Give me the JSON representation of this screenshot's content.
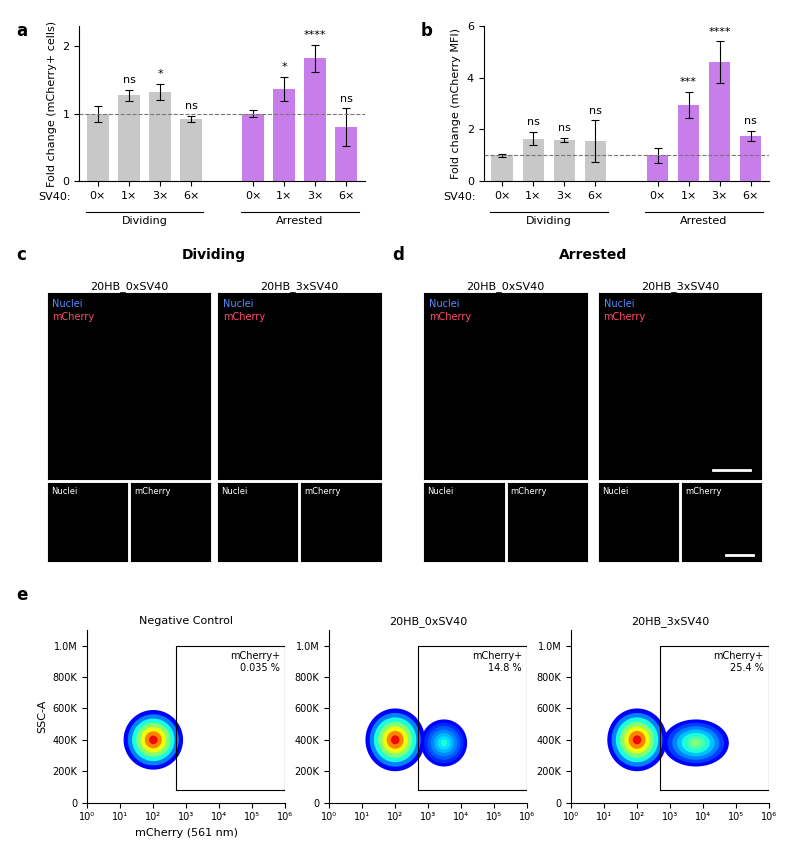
{
  "chart_data": [
    {
      "type": "bar",
      "panel_label": "a",
      "y_label": "Fold change (mCherry+ cells)",
      "x_row_label": "SV40:",
      "ylim": [
        0,
        2.3
      ],
      "yticks": [
        0,
        1,
        2
      ],
      "reference_line": 1,
      "groups": [
        {
          "name": "Dividing",
          "color": "#c8c8c8",
          "categories": [
            "0×",
            "1×",
            "3×",
            "6×"
          ],
          "values": [
            1.0,
            1.27,
            1.32,
            0.92
          ],
          "errors": [
            0.12,
            0.08,
            0.12,
            0.05
          ],
          "significance": [
            null,
            "ns",
            "*",
            "ns"
          ]
        },
        {
          "name": "Arrested",
          "color": "#c77dea",
          "categories": [
            "0×",
            "1×",
            "3×",
            "6×"
          ],
          "values": [
            1.0,
            1.37,
            1.82,
            0.8
          ],
          "errors": [
            0.05,
            0.18,
            0.2,
            0.28
          ],
          "significance": [
            null,
            "*",
            "****",
            "ns"
          ]
        }
      ]
    },
    {
      "type": "bar",
      "panel_label": "b",
      "y_label": "Fold change (mCherry MFI)",
      "x_row_label": "SV40:",
      "ylim": [
        0,
        6
      ],
      "yticks": [
        0,
        2,
        4,
        6
      ],
      "reference_line": 1,
      "groups": [
        {
          "name": "Dividing",
          "color": "#c8c8c8",
          "categories": [
            "0×",
            "1×",
            "3×",
            "6×"
          ],
          "values": [
            1.0,
            1.65,
            1.6,
            1.55
          ],
          "errors": [
            0.05,
            0.25,
            0.08,
            0.8
          ],
          "significance": [
            null,
            "ns",
            "ns",
            "ns"
          ]
        },
        {
          "name": "Arrested",
          "color": "#c77dea",
          "categories": [
            "0×",
            "1×",
            "3×",
            "6×"
          ],
          "values": [
            1.0,
            2.95,
            4.6,
            1.75
          ],
          "errors": [
            0.3,
            0.5,
            0.8,
            0.2
          ],
          "significance": [
            null,
            "***",
            "****",
            "ns"
          ]
        }
      ]
    },
    {
      "type": "density",
      "panel_label": "e",
      "title": "Negative Control",
      "x_label": "mCherry (561 nm)",
      "y_label": "SSC-A",
      "log": "x",
      "xlim": [
        1,
        1000000
      ],
      "ylim": [
        0,
        1100000
      ],
      "xticks": [
        {
          "value": 1,
          "label": "10⁰"
        },
        {
          "value": 10,
          "label": "10¹"
        },
        {
          "value": 100,
          "label": "10²"
        },
        {
          "value": 1000,
          "label": "10³"
        },
        {
          "value": 10000,
          "label": "10⁴"
        },
        {
          "value": 100000,
          "label": "10⁵"
        },
        {
          "value": 1000000,
          "label": "10⁶"
        }
      ],
      "yticks": [
        0,
        {
          "value": 200000,
          "label": "200K"
        },
        {
          "value": 400000,
          "label": "400K"
        },
        {
          "value": 600000,
          "label": "600K"
        },
        {
          "value": 800000,
          "label": "800K"
        },
        {
          "value": 1000000,
          "label": "1.0M"
        }
      ],
      "gate": {
        "label": "mCherry+",
        "value": 0.035,
        "value_label": "0.035 %",
        "x": [
          500,
          1000000
        ],
        "y": [
          80000,
          1000000
        ]
      },
      "populations": [
        {
          "x_center": 100,
          "y_center": 400000,
          "x_halfwidth_decades": 0.9,
          "y_halfheight": 190000,
          "relative_density": 1.0
        }
      ]
    },
    {
      "type": "density",
      "title": "20HB_0xSV40",
      "log": "x",
      "xlim": [
        1,
        1000000
      ],
      "ylim": [
        0,
        1100000
      ],
      "xticks": [
        {
          "value": 1,
          "label": "10⁰"
        },
        {
          "value": 10,
          "label": "10¹"
        },
        {
          "value": 100,
          "label": "10²"
        },
        {
          "value": 1000,
          "label": "10³"
        },
        {
          "value": 10000,
          "label": "10⁴"
        },
        {
          "value": 100000,
          "label": "10⁵"
        },
        {
          "value": 1000000,
          "label": "10⁶"
        }
      ],
      "yticks": [
        0,
        {
          "value": 200000,
          "label": "200K"
        },
        {
          "value": 400000,
          "label": "400K"
        },
        {
          "value": 600000,
          "label": "600K"
        },
        {
          "value": 800000,
          "label": "800K"
        },
        {
          "value": 1000000,
          "label": "1.0M"
        }
      ],
      "gate": {
        "label": "mCherry+",
        "value": 14.8,
        "value_label": "14.8 %",
        "x": [
          500,
          1000000
        ],
        "y": [
          80000,
          1000000
        ]
      },
      "populations": [
        {
          "x_center": 100,
          "y_center": 400000,
          "x_halfwidth_decades": 0.9,
          "y_halfheight": 200000,
          "relative_density": 1.0
        },
        {
          "x_center": 3000,
          "y_center": 380000,
          "x_halfwidth_decades": 0.7,
          "y_halfheight": 150000,
          "relative_density": 0.35
        }
      ]
    },
    {
      "type": "density",
      "title": "20HB_3xSV40",
      "log": "x",
      "xlim": [
        1,
        1000000
      ],
      "ylim": [
        0,
        1100000
      ],
      "xticks": [
        {
          "value": 1,
          "label": "10⁰"
        },
        {
          "value": 10,
          "label": "10¹"
        },
        {
          "value": 100,
          "label": "10²"
        },
        {
          "value": 1000,
          "label": "10³"
        },
        {
          "value": 10000,
          "label": "10⁴"
        },
        {
          "value": 100000,
          "label": "10⁵"
        },
        {
          "value": 1000000,
          "label": "10⁶"
        }
      ],
      "yticks": [
        0,
        {
          "value": 200000,
          "label": "200K"
        },
        {
          "value": 400000,
          "label": "400K"
        },
        {
          "value": 600000,
          "label": "600K"
        },
        {
          "value": 800000,
          "label": "800K"
        },
        {
          "value": 1000000,
          "label": "1.0M"
        }
      ],
      "gate": {
        "label": "mCherry+",
        "value": 25.4,
        "value_label": "25.4 %",
        "x": [
          500,
          1000000
        ],
        "y": [
          80000,
          1000000
        ]
      },
      "populations": [
        {
          "x_center": 100,
          "y_center": 400000,
          "x_halfwidth_decades": 0.9,
          "y_halfheight": 200000,
          "relative_density": 1.0
        },
        {
          "x_center": 6000,
          "y_center": 380000,
          "x_halfwidth_decades": 1.0,
          "y_halfheight": 150000,
          "relative_density": 0.5
        }
      ]
    }
  ],
  "image_panels": [
    {
      "panel_label": "c",
      "title": "Dividing",
      "images": [
        {
          "title": "20HB_0xSV40",
          "channels": [
            "Nuclei",
            "mCherry"
          ]
        },
        {
          "title": "20HB_3xSV40",
          "channels": [
            "Nuclei",
            "mCherry"
          ]
        }
      ]
    },
    {
      "panel_label": "d",
      "title": "Arrested",
      "images": [
        {
          "title": "20HB_0xSV40",
          "channels": [
            "Nuclei",
            "mCherry"
          ]
        },
        {
          "title": "20HB_3xSV40",
          "channels": [
            "Nuclei",
            "mCherry"
          ]
        }
      ]
    }
  ]
}
